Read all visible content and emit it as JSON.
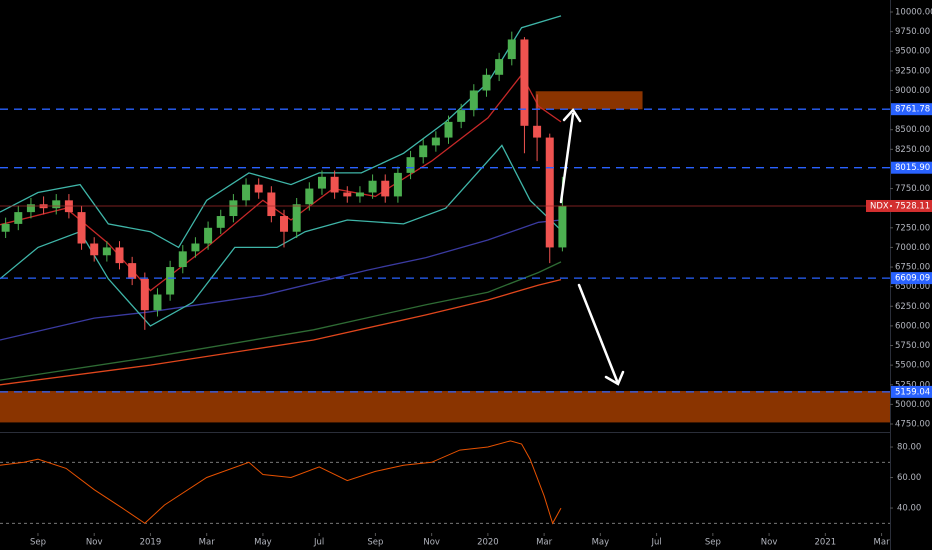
{
  "chart_data": [
    {
      "type": "candlestick",
      "xlim": [
        -1.35,
        30.3
      ],
      "ylim": [
        4648,
        10153
      ],
      "yticks": [
        {
          "value": 10000,
          "label": "10000.00"
        },
        {
          "value": 9750,
          "label": "9750.00"
        },
        {
          "value": 9500,
          "label": "9500.00"
        },
        {
          "value": 9250,
          "label": "9250.00"
        },
        {
          "value": 9000,
          "label": "9000.00"
        },
        {
          "value": 8500,
          "label": "8500.00"
        },
        {
          "value": 8250,
          "label": "8250.00"
        },
        {
          "value": 7750,
          "label": "7750.00"
        },
        {
          "value": 7250,
          "label": "7250.00"
        },
        {
          "value": 7000,
          "label": "7000.00"
        },
        {
          "value": 6750,
          "label": "6750.00"
        },
        {
          "value": 6500,
          "label": "6500.00"
        },
        {
          "value": 6250,
          "label": "6250.00"
        },
        {
          "value": 6000,
          "label": "6000.00"
        },
        {
          "value": 5750,
          "label": "5750.00"
        },
        {
          "value": 5500,
          "label": "5500.00"
        },
        {
          "value": 5250,
          "label": "5250.00"
        },
        {
          "value": 5000,
          "label": "5000.00"
        },
        {
          "value": 4750,
          "label": "4750.00"
        }
      ],
      "symbol": "NDX",
      "up_color": "#4caf50",
      "down_color": "#ef5350",
      "x": [
        -1.15,
        -0.7,
        -0.25,
        0.2,
        0.65,
        1.1,
        1.55,
        2.0,
        2.45,
        2.9,
        3.35,
        3.8,
        4.25,
        4.7,
        5.15,
        5.6,
        6.05,
        6.5,
        6.95,
        7.4,
        7.85,
        8.3,
        8.75,
        9.2,
        9.65,
        10.1,
        10.55,
        11.0,
        11.45,
        11.9,
        12.35,
        12.8,
        13.25,
        13.7,
        14.15,
        14.6,
        15.05,
        15.5,
        15.95,
        16.4,
        16.85,
        17.3,
        17.75,
        18.2,
        18.65
      ],
      "open": [
        7200,
        7300,
        7450,
        7550,
        7500,
        7600,
        7450,
        7050,
        6900,
        7000,
        6800,
        6600,
        6200,
        6400,
        6750,
        6950,
        7050,
        7250,
        7400,
        7600,
        7800,
        7700,
        7400,
        7200,
        7550,
        7750,
        7900,
        7700,
        7650,
        7700,
        7850,
        7650,
        7950,
        8150,
        8300,
        8400,
        8600,
        8750,
        9000,
        9200,
        9400,
        9650,
        8550,
        8400,
        7000
      ],
      "high": [
        7380,
        7530,
        7630,
        7650,
        7680,
        7680,
        7530,
        7130,
        7080,
        7080,
        6880,
        6680,
        6480,
        6830,
        7030,
        7130,
        7330,
        7480,
        7680,
        7880,
        7880,
        7780,
        7480,
        7630,
        7830,
        7980,
        7980,
        7780,
        7780,
        7930,
        7930,
        8030,
        8230,
        8380,
        8480,
        8680,
        8830,
        9080,
        9280,
        9480,
        9750,
        9680,
        8950,
        8450,
        7900
      ],
      "low": [
        7120,
        7220,
        7370,
        7420,
        7420,
        7370,
        6970,
        6820,
        6820,
        6720,
        6520,
        5950,
        6120,
        6320,
        6670,
        6870,
        6970,
        7170,
        7320,
        7520,
        7620,
        7320,
        7000,
        7120,
        7470,
        7670,
        7620,
        7570,
        7570,
        7620,
        7570,
        7570,
        7870,
        8070,
        8220,
        8320,
        8520,
        8670,
        8920,
        9120,
        9320,
        8200,
        8100,
        6800,
        6950
      ],
      "close": [
        7300,
        7450,
        7550,
        7500,
        7600,
        7450,
        7050,
        6900,
        7000,
        6800,
        6600,
        6200,
        6400,
        6750,
        6950,
        7050,
        7250,
        7400,
        7600,
        7800,
        7700,
        7400,
        7200,
        7550,
        7750,
        7900,
        7700,
        7650,
        7700,
        7850,
        7650,
        7950,
        8150,
        8300,
        8400,
        8600,
        8750,
        9000,
        9200,
        9400,
        9650,
        8550,
        8400,
        7000,
        7528.11
      ],
      "overlays": [
        {
          "color": "#e0461c",
          "x": [
            -1.35,
            4,
            9.8,
            13.8,
            16,
            17.8,
            18.6
          ],
          "values": [
            5250,
            5500,
            5820,
            6140,
            6330,
            6520,
            6590
          ]
        },
        {
          "color": "#2e6b34",
          "x": [
            -1.35,
            4,
            9.8,
            13.8,
            16,
            17.8,
            18.6
          ],
          "values": [
            5310,
            5600,
            5950,
            6270,
            6430,
            6680,
            6815
          ]
        },
        {
          "color": "#3a3aa0",
          "x": [
            -1.35,
            2,
            4,
            8,
            11.7,
            13.8,
            16,
            17.8,
            18.6
          ],
          "values": [
            5820,
            6100,
            6180,
            6390,
            6710,
            6870,
            7095,
            7320,
            7350
          ]
        },
        {
          "color": "#c62828",
          "x": [
            -1.35,
            1,
            2.5,
            4,
            6,
            8,
            9,
            10.5,
            12,
            14,
            16,
            17.2,
            17.8,
            18.6
          ],
          "values": [
            7290,
            7500,
            7050,
            6450,
            7000,
            7600,
            7350,
            7750,
            7650,
            8100,
            8650,
            9200,
            8800,
            8600
          ]
        },
        {
          "color": "#3fb5a8",
          "x": [
            -1.35,
            0,
            1.5,
            2.5,
            4,
            5,
            6,
            7.5,
            9,
            10,
            11.5,
            13,
            14.5,
            16,
            17.2,
            18.6
          ],
          "values": [
            7450,
            7700,
            7800,
            7300,
            7200,
            7000,
            7600,
            7950,
            7800,
            7950,
            7950,
            8200,
            8600,
            9100,
            9800,
            9950
          ]
        },
        {
          "color": "#3fb5a8",
          "x": [
            -1.35,
            0,
            1.5,
            2.5,
            4,
            5.5,
            7,
            8.5,
            9.5,
            11,
            13,
            14.5,
            15.5,
            16.5,
            17.5,
            18.6
          ],
          "values": [
            6600,
            7000,
            7200,
            6600,
            6000,
            6300,
            7000,
            7000,
            7200,
            7350,
            7300,
            7500,
            7900,
            8300,
            7600,
            7220
          ]
        }
      ],
      "levels": [
        {
          "value": 8761.78,
          "label": "8761.78"
        },
        {
          "value": 8015.9,
          "label": "8015.90"
        },
        {
          "value": 6609.09,
          "label": "6609.09"
        },
        {
          "value": 5159.04,
          "label": "5159.04"
        }
      ],
      "level_color": "#2962ff",
      "zones": [
        {
          "x": [
            17.7,
            21.5
          ],
          "y": [
            8760,
            8990
          ]
        },
        {
          "x": [
            -1.35,
            30.3
          ],
          "y": [
            4770,
            5170
          ]
        }
      ],
      "zone_color": "#8a3400"
    },
    {
      "type": "line",
      "xlim": [
        -1.35,
        30.3
      ],
      "ylim": [
        24.3,
        89.2
      ],
      "yticks": [
        {
          "value": 80,
          "label": "80.00"
        },
        {
          "value": 60,
          "label": "60.00"
        },
        {
          "value": 40,
          "label": "40.00"
        }
      ],
      "levels": [
        70,
        30
      ],
      "color": "#e65100",
      "x": [
        -1.35,
        -0.5,
        0,
        1,
        2,
        3,
        3.8,
        4.5,
        6,
        7.5,
        8,
        9,
        10,
        11,
        12,
        13,
        14,
        15,
        16,
        16.8,
        17.2,
        17.5,
        18,
        18.3,
        18.6
      ],
      "values": [
        68,
        70,
        72,
        66,
        52,
        40,
        30,
        42,
        60,
        70,
        62,
        60,
        67,
        58,
        64,
        68,
        70,
        78,
        80,
        84,
        82,
        72,
        48,
        30,
        40
      ],
      "xticks": [
        {
          "value": 0,
          "label": "Sep"
        },
        {
          "value": 2,
          "label": "Nov"
        },
        {
          "value": 4,
          "label": "2019"
        },
        {
          "value": 6,
          "label": "Mar"
        },
        {
          "value": 8,
          "label": "May"
        },
        {
          "value": 10,
          "label": "Jul"
        },
        {
          "value": 12,
          "label": "Sep"
        },
        {
          "value": 14,
          "label": "Nov"
        },
        {
          "value": 16,
          "label": "2020"
        },
        {
          "value": 18,
          "label": "Mar"
        },
        {
          "value": 20,
          "label": "May"
        },
        {
          "value": 22,
          "label": "Jul"
        },
        {
          "value": 24,
          "label": "Sep"
        },
        {
          "value": 26,
          "label": "Nov"
        },
        {
          "value": 28,
          "label": "2021"
        },
        {
          "value": 30,
          "label": "Mar"
        }
      ]
    }
  ]
}
